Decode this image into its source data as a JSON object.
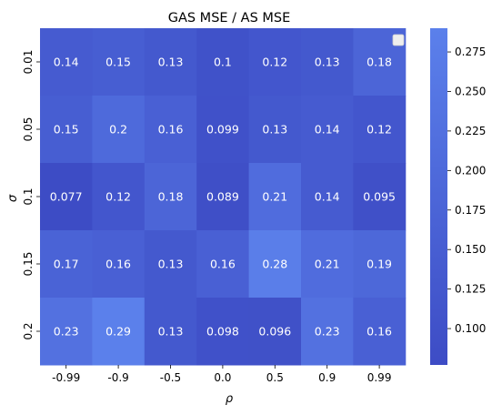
{
  "chart_data": {
    "type": "heatmap",
    "title": "GAS MSE / AS MSE",
    "xlabel": "ρ",
    "ylabel": "σ",
    "x_categories": [
      "-0.99",
      "-0.9",
      "-0.5",
      "0.0",
      "0.5",
      "0.9",
      "0.99"
    ],
    "y_categories": [
      "0.01",
      "0.05",
      "0.1",
      "0.15",
      "0.2"
    ],
    "values": [
      [
        0.14,
        0.15,
        0.13,
        0.1,
        0.12,
        0.13,
        0.18
      ],
      [
        0.15,
        0.2,
        0.16,
        0.099,
        0.13,
        0.14,
        0.12
      ],
      [
        0.077,
        0.12,
        0.18,
        0.089,
        0.21,
        0.14,
        0.095
      ],
      [
        0.17,
        0.16,
        0.13,
        0.16,
        0.28,
        0.21,
        0.19
      ],
      [
        0.23,
        0.29,
        0.13,
        0.098,
        0.096,
        0.23,
        0.16
      ]
    ],
    "colorbar": {
      "range": [
        0.077,
        0.29
      ],
      "ticks": [
        "0.100",
        "0.125",
        "0.150",
        "0.175",
        "0.200",
        "0.225",
        "0.250",
        "0.275"
      ],
      "color_low": "#3d4cc5",
      "color_high": "#5b80eb"
    },
    "annotation_color": "#ffffff",
    "legend": "top-right (empty)"
  }
}
